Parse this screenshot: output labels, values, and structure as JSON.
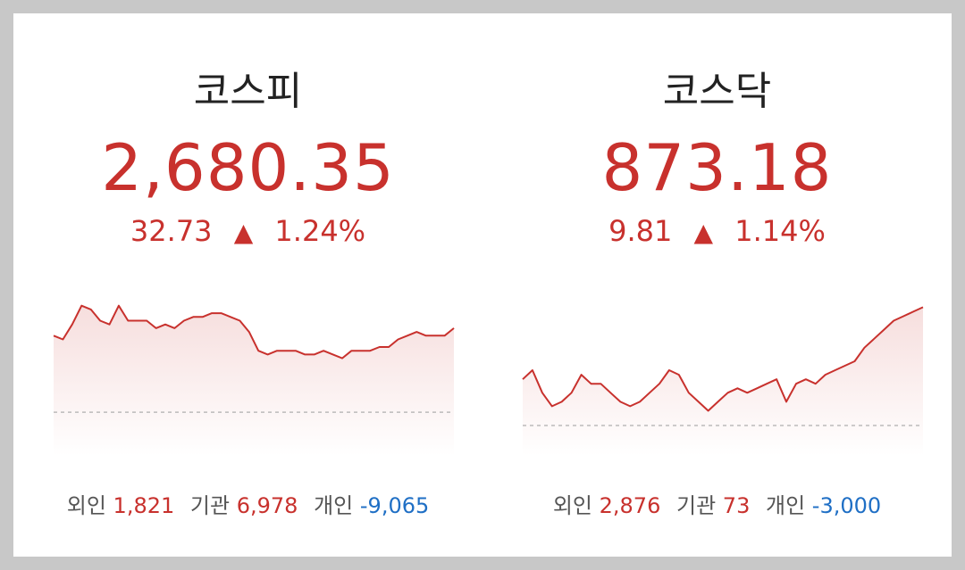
{
  "colors": {
    "up": "#c8312d",
    "down": "#1f6fc5",
    "label": "#555555",
    "title": "#222222",
    "baseline": "#bbbbbb"
  },
  "markets": [
    {
      "name": "코스피",
      "value": "2,680.35",
      "change": "32.73",
      "direction": "up-arrow-icon",
      "arrow": "▲",
      "percent": "1.24%",
      "investors": {
        "foreign_label": "외인",
        "foreign": "1,821",
        "institution_label": "기관",
        "institution": "6,978",
        "individual_label": "개인",
        "individual": "-9,065"
      },
      "chart_data": {
        "type": "area",
        "baseline": 2647.62,
        "ylim": [
          2636,
          2684
        ],
        "values": [
          2668,
          2667,
          2671,
          2676,
          2675,
          2672,
          2671,
          2676,
          2672,
          2672,
          2672,
          2670,
          2671,
          2670,
          2672,
          2673,
          2673,
          2674,
          2674,
          2673,
          2672,
          2669,
          2664,
          2663,
          2664,
          2664,
          2664,
          2663,
          2663,
          2664,
          2663,
          2662,
          2664,
          2664,
          2664,
          2665,
          2665,
          2667,
          2668,
          2669,
          2668,
          2668,
          2668,
          2670
        ]
      }
    },
    {
      "name": "코스닥",
      "value": "873.18",
      "change": "9.81",
      "direction": "up-arrow-icon",
      "arrow": "▲",
      "percent": "1.14%",
      "investors": {
        "foreign_label": "외인",
        "foreign": "2,876",
        "institution_label": "기관",
        "institution": "73",
        "individual_label": "개인",
        "individual": "-3,000"
      },
      "chart_data": {
        "type": "area",
        "baseline": 863.37,
        "ylim": [
          860,
          880
        ],
        "values": [
          868.5,
          869.5,
          867,
          865.5,
          866,
          867,
          869,
          868,
          868,
          867,
          866,
          865.5,
          866,
          867,
          868,
          869.5,
          869,
          867,
          866,
          865,
          866,
          867,
          867.5,
          867,
          867.5,
          868,
          868.5,
          866,
          868,
          868.5,
          868,
          869,
          869.5,
          870,
          870.5,
          872,
          873,
          874,
          875,
          875.5,
          876,
          876.5
        ]
      }
    }
  ]
}
